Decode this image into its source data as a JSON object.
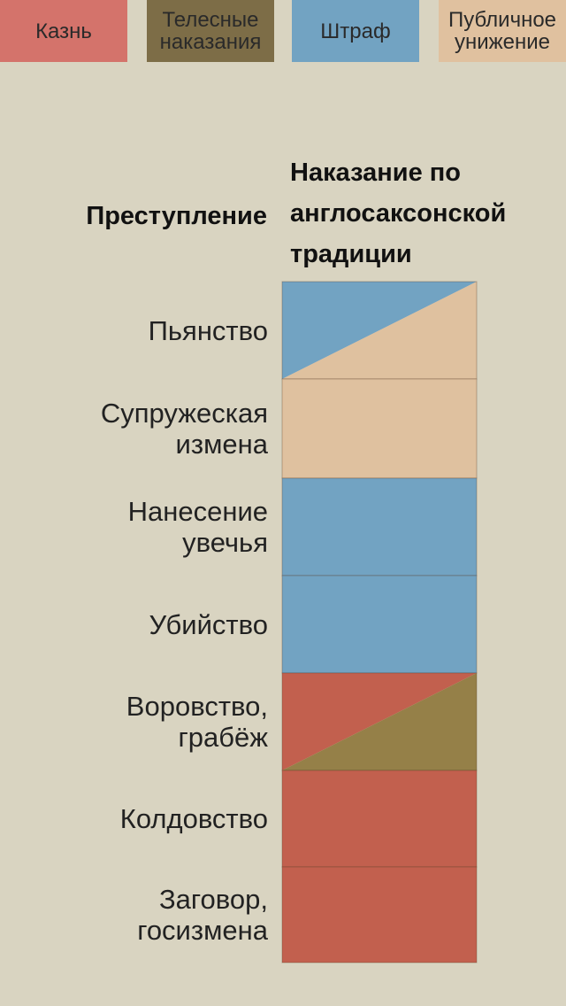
{
  "legend": [
    {
      "label": "Казнь",
      "color": "#d4736b"
    },
    {
      "label": "Телесные\nнаказания",
      "color": "#7d6d47"
    },
    {
      "label": "Штраф",
      "color": "#72a3c2"
    },
    {
      "label": "Публичное\nунижение",
      "color": "#e0c19f"
    }
  ],
  "headers": {
    "crime": "Преступление",
    "punishment": "Наказание по англосаксонской традиции"
  },
  "chart_data": {
    "type": "table",
    "categories": [
      "Пьянство",
      "Супружеская измена",
      "Нанесение увечья",
      "Убийство",
      "Воровство, грабёж",
      "Колдовство",
      "Заговор, госизмена"
    ],
    "colors": {
      "Казнь": "#c2604e",
      "Телесные наказания": "#958048",
      "Штраф": "#72a3c2",
      "Публичное унижение": "#dfc19f"
    },
    "rows": [
      {
        "crime": "Пьянство",
        "punishments": [
          "Штраф",
          "Публичное унижение"
        ]
      },
      {
        "crime": "Супружеская измена",
        "punishments": [
          "Публичное унижение"
        ]
      },
      {
        "crime": "Нанесение увечья",
        "punishments": [
          "Штраф"
        ]
      },
      {
        "crime": "Убийство",
        "punishments": [
          "Штраф"
        ]
      },
      {
        "crime": "Воровство, грабёж",
        "punishments": [
          "Казнь",
          "Телесные наказания"
        ]
      },
      {
        "crime": "Колдовство",
        "punishments": [
          "Казнь"
        ]
      },
      {
        "crime": "Заговор, госизмена",
        "punishments": [
          "Казнь"
        ]
      }
    ]
  },
  "row_labels": [
    "Пьянство",
    "Супружеская\nизмена",
    "Нанесение\nувечья",
    "Убийство",
    "Воровство,\nграбёж",
    "Колдовство",
    "Заговор,\nгосизмена"
  ]
}
